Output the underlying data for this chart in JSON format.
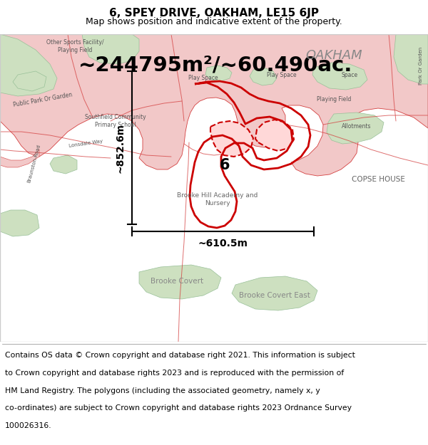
{
  "title_line1": "6, SPEY DRIVE, OAKHAM, LE15 6JP",
  "title_line2": "Map shows position and indicative extent of the property.",
  "area_text": "~244795m²/~60.490ac.",
  "dim_horizontal": "~610.5m",
  "dim_vertical": "~852.6m",
  "label_number": "6",
  "label_copse": "COPSE HOUSE",
  "label_oakham": "OAKHAM",
  "label_brooke_covert": "Brooke Covert",
  "label_brooke_covert_east": "Brooke Covert East",
  "label_brooke_hill": "Brooke Hill Academy and\nNursery",
  "footer_lines": [
    "Contains OS data © Crown copyright and database right 2021. This information is subject",
    "to Crown copyright and database rights 2023 and is reproduced with the permission of",
    "HM Land Registry. The polygons (including the associated geometry, namely x, y",
    "co-ordinates) are subject to Crown copyright and database rights 2023 Ordnance Survey",
    "100026316."
  ],
  "map_bg": "#f2ede8",
  "urban_color": "#f2c8c8",
  "urban_edge": "#d44040",
  "property_edge": "#cc0000",
  "road_color": "#d44040",
  "green_color": "#cde0c0",
  "green_edge": "#98c098",
  "title_fontsize": 11,
  "subtitle_fontsize": 9,
  "area_fontsize": 21,
  "footer_fontsize": 7.8,
  "dim_fontsize": 10,
  "label_fontsize": 8,
  "oakham_fontsize": 13
}
